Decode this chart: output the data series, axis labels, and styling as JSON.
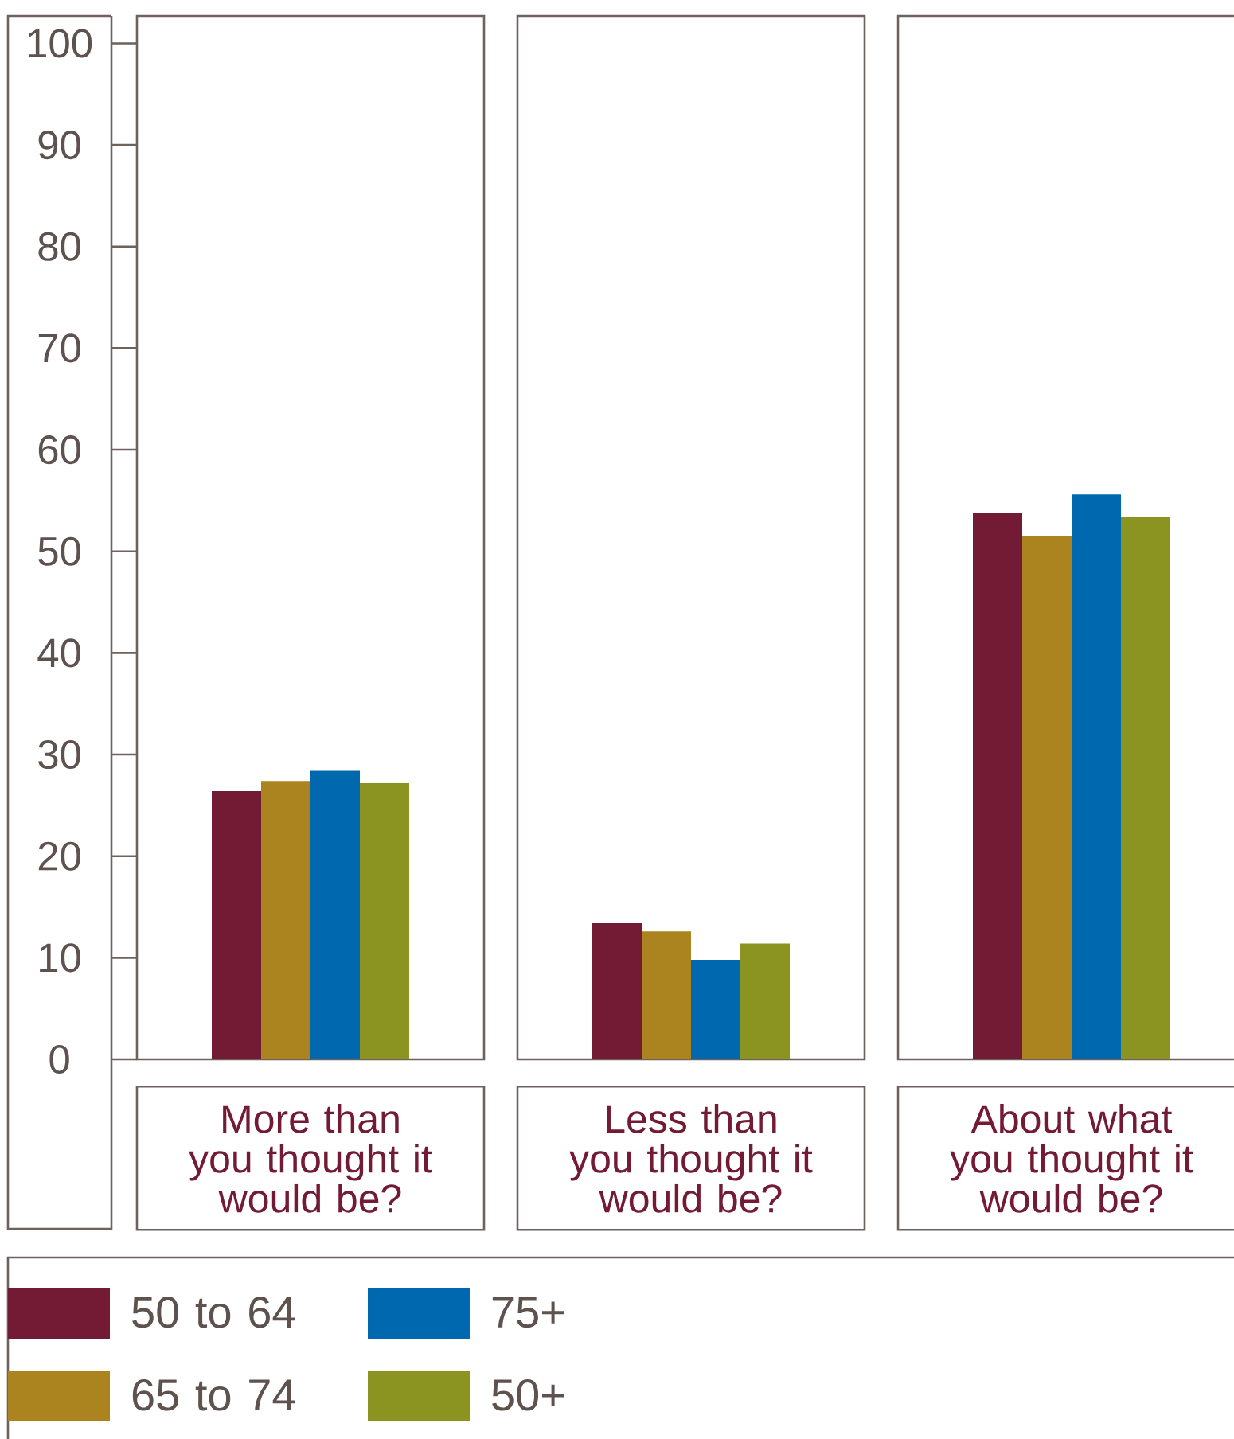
{
  "chart_data": [
    {
      "type": "bar",
      "categories": [
        "More than you thought it would be?"
      ],
      "series": [
        {
          "name": "50 to 64",
          "color": "#731a35",
          "values": [
            26.4
          ]
        },
        {
          "name": "65 to 74",
          "color": "#ac841f",
          "values": [
            27.4
          ]
        },
        {
          "name": "75+",
          "color": "#0068af",
          "values": [
            28.4
          ]
        },
        {
          "name": "50+",
          "color": "#8b9421",
          "values": [
            27.2
          ]
        }
      ],
      "ylim": [
        0,
        102.7
      ],
      "yticks": [
        0,
        10,
        20,
        30,
        40,
        50,
        60,
        70,
        80,
        90,
        100
      ],
      "legend": "bottom"
    },
    {
      "type": "bar",
      "categories": [
        "Less than you thought it would be?"
      ],
      "series": [
        {
          "color": "#731a35",
          "values": [
            13.4
          ]
        },
        {
          "color": "#ac841f",
          "values": [
            12.6
          ]
        },
        {
          "color": "#0068af",
          "values": [
            9.8
          ]
        },
        {
          "color": "#8b9421",
          "values": [
            11.4
          ]
        }
      ],
      "ylim": [
        0,
        102.7
      ],
      "tick_labels": "x"
    },
    {
      "type": "bar",
      "categories": [
        "About what you thought it would be?"
      ],
      "series": [
        {
          "color": "#731a35",
          "values": [
            53.8
          ]
        },
        {
          "color": "#ac841f",
          "values": [
            51.5
          ]
        },
        {
          "color": "#0068af",
          "values": [
            55.6
          ]
        },
        {
          "color": "#8b9421",
          "values": [
            53.4
          ]
        }
      ],
      "ylim": [
        0,
        102.7
      ],
      "tick_labels": "x"
    }
  ]
}
